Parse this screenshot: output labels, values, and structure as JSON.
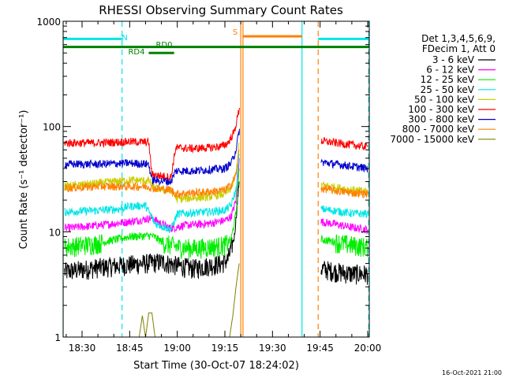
{
  "chart_data": {
    "type": "line",
    "title": "RHESSI Observing Summary Count Rates",
    "xlabel": "Start Time (30-Oct-07 18:24:02)",
    "ylabel": "Count Rate (s⁻¹ detector⁻¹)",
    "x_ticks": [
      "18:30",
      "18:45",
      "19:00",
      "19:15",
      "19:30",
      "19:45",
      "20:00"
    ],
    "x_tick_minutes": [
      30,
      45,
      60,
      75,
      90,
      105,
      120
    ],
    "y_ticks": [
      {
        "value": 1,
        "label": "1"
      },
      {
        "value": 10,
        "label": "10"
      },
      {
        "value": 100,
        "label": "100"
      },
      {
        "value": 1000,
        "label": "1000"
      }
    ],
    "xlim_minutes": [
      24.03,
      120.5
    ],
    "ylim": [
      1,
      1000
    ],
    "y_scale": "log",
    "legend_header": [
      "Det 1,3,4,5,6,9,",
      "FDecim 1, Att 0"
    ],
    "legend_position": "right",
    "timestamp": "16-Oct-2021 21:00",
    "flags": [
      {
        "label": "N",
        "color": "#00e5e5",
        "segments": [
          [
            24.03,
            42.6
          ],
          [
            104.4,
            120.5
          ]
        ],
        "level": 680
      },
      {
        "label": "S",
        "color": "#ff8000",
        "segments": [
          [
            80.7,
            99.3
          ]
        ],
        "level": 720
      },
      {
        "label": "",
        "color": "#008000",
        "segments": [
          [
            24.03,
            120.5
          ]
        ],
        "level": 570
      },
      {
        "label": "RD4",
        "color": "#008000",
        "segments": [
          [
            51.0,
            59.0
          ]
        ],
        "level": 500
      },
      {
        "label": "RD0",
        "color": "#008000",
        "segments": [],
        "level": 620
      }
    ],
    "vlines": [
      {
        "x": 24.03,
        "color": "#00e5e5",
        "style": "solid"
      },
      {
        "x": 42.6,
        "color": "#00e5e5",
        "style": "dashed"
      },
      {
        "x": 80.0,
        "color": "#ff8000",
        "style": "solid"
      },
      {
        "x": 80.7,
        "color": "#ff8000",
        "style": "solid"
      },
      {
        "x": 99.3,
        "color": "#00e5e5",
        "style": "solid"
      },
      {
        "x": 104.4,
        "color": "#ff8000",
        "style": "dashed"
      },
      {
        "x": 120.3,
        "color": "#00e5e5",
        "style": "dashed"
      }
    ],
    "data_gap_minutes": [
      80.0,
      105.0
    ],
    "series": [
      {
        "name": "3 - 6 keV",
        "color": "#000000",
        "points": [
          [
            24.5,
            4.2
          ],
          [
            35,
            4.6
          ],
          [
            45,
            4.9
          ],
          [
            55,
            5.2
          ],
          [
            60,
            4.8
          ],
          [
            65,
            4.5
          ],
          [
            70,
            4.8
          ],
          [
            74,
            5.0
          ],
          [
            76,
            5.5
          ],
          [
            78,
            9
          ],
          [
            79.5,
            30
          ],
          [
            105.3,
            4.5
          ],
          [
            110,
            4.2
          ],
          [
            115,
            4.0
          ],
          [
            120,
            4.0
          ]
        ]
      },
      {
        "name": "6 - 12 keV",
        "color": "#ff00ff",
        "points": [
          [
            24.5,
            10.8
          ],
          [
            35,
            11.5
          ],
          [
            45,
            12.5
          ],
          [
            52,
            13.5
          ],
          [
            56,
            11.5
          ],
          [
            58,
            10.8
          ],
          [
            62,
            11.5
          ],
          [
            70,
            12.0
          ],
          [
            75,
            12.8
          ],
          [
            77,
            14
          ],
          [
            78.5,
            20
          ],
          [
            79.5,
            50
          ],
          [
            105.3,
            12.5
          ],
          [
            110,
            11.8
          ],
          [
            115,
            11.0
          ],
          [
            120,
            10.5
          ]
        ]
      },
      {
        "name": "12 - 25 keV",
        "color": "#00ee00",
        "points": [
          [
            24.5,
            7.2
          ],
          [
            35,
            7.8
          ],
          [
            45,
            9.0
          ],
          [
            52,
            9.2
          ],
          [
            56,
            7.8
          ],
          [
            60,
            7.2
          ],
          [
            65,
            7.0
          ],
          [
            70,
            7.2
          ],
          [
            75,
            7.5
          ],
          [
            77,
            8.5
          ],
          [
            78.5,
            15
          ],
          [
            79.5,
            40
          ],
          [
            105.3,
            8.5
          ],
          [
            110,
            8.0
          ],
          [
            115,
            7.5
          ],
          [
            120,
            7.2
          ]
        ]
      },
      {
        "name": "25 - 50 keV",
        "color": "#00e5e5",
        "points": [
          [
            24.5,
            15.5
          ],
          [
            35,
            16.0
          ],
          [
            42,
            16.5
          ],
          [
            45,
            17.5
          ],
          [
            50,
            17.8
          ],
          [
            53,
            12
          ],
          [
            58,
            10.5
          ],
          [
            60,
            14.8
          ],
          [
            65,
            15.2
          ],
          [
            70,
            15.5
          ],
          [
            75,
            16.0
          ],
          [
            77,
            18
          ],
          [
            78.5,
            25
          ],
          [
            79.5,
            55
          ],
          [
            105.3,
            16.5
          ],
          [
            110,
            15.8
          ],
          [
            115,
            15.0
          ],
          [
            120,
            14.8
          ]
        ]
      },
      {
        "name": "50 - 100 keV",
        "color": "#cccc00",
        "points": [
          [
            24.5,
            27.0
          ],
          [
            35,
            29.0
          ],
          [
            45,
            31.0
          ],
          [
            51,
            30.5
          ],
          [
            53,
            26
          ],
          [
            58,
            24.5
          ],
          [
            60,
            20.5
          ],
          [
            65,
            21.0
          ],
          [
            70,
            21.5
          ],
          [
            75,
            23
          ],
          [
            77,
            26
          ],
          [
            78.5,
            35
          ],
          [
            79.5,
            70
          ],
          [
            105.3,
            28.0
          ],
          [
            110,
            26.5
          ],
          [
            115,
            25.0
          ],
          [
            120,
            24.0
          ]
        ]
      },
      {
        "name": "100 - 300 keV",
        "color": "#ff0000",
        "points": [
          [
            24.5,
            70
          ],
          [
            35,
            70
          ],
          [
            45,
            72
          ],
          [
            51,
            71
          ],
          [
            52,
            35
          ],
          [
            58,
            33
          ],
          [
            59.5,
            63
          ],
          [
            65,
            62
          ],
          [
            70,
            63
          ],
          [
            74,
            65
          ],
          [
            76,
            70
          ],
          [
            78,
            90
          ],
          [
            79.6,
            150
          ],
          [
            105.3,
            73
          ],
          [
            110,
            70
          ],
          [
            115,
            67
          ],
          [
            120,
            64
          ]
        ]
      },
      {
        "name": "300 - 800 keV",
        "color": "#0000cc",
        "points": [
          [
            24.5,
            44
          ],
          [
            35,
            44
          ],
          [
            45,
            45
          ],
          [
            51,
            44
          ],
          [
            52,
            31
          ],
          [
            58,
            30
          ],
          [
            59.5,
            38
          ],
          [
            65,
            38
          ],
          [
            70,
            39
          ],
          [
            75,
            40
          ],
          [
            77,
            45
          ],
          [
            78.5,
            60
          ],
          [
            79.6,
            95
          ],
          [
            105.3,
            46
          ],
          [
            110,
            44
          ],
          [
            115,
            42
          ],
          [
            120,
            40
          ]
        ]
      },
      {
        "name": "800 - 7000 keV",
        "color": "#ff8000",
        "points": [
          [
            24.5,
            26
          ],
          [
            35,
            27
          ],
          [
            45,
            27
          ],
          [
            51,
            27
          ],
          [
            52,
            26
          ],
          [
            58,
            25
          ],
          [
            59.5,
            23
          ],
          [
            65,
            23.5
          ],
          [
            70,
            24
          ],
          [
            75,
            25
          ],
          [
            77,
            28
          ],
          [
            78.5,
            35
          ],
          [
            79.5,
            60
          ],
          [
            105.3,
            26
          ],
          [
            110,
            24.5
          ],
          [
            115,
            23.5
          ],
          [
            120,
            23
          ]
        ]
      },
      {
        "name": "7000 - 15000 keV",
        "color": "#808000",
        "points": [
          [
            48,
            1.0
          ],
          [
            49,
            1.6
          ],
          [
            50,
            1.0
          ],
          [
            51,
            1.7
          ],
          [
            52,
            1.7
          ],
          [
            53,
            1.0
          ],
          [
            76.5,
            1.0
          ],
          [
            77.5,
            1.6
          ],
          [
            78.5,
            3
          ],
          [
            79.5,
            5
          ]
        ]
      }
    ]
  }
}
